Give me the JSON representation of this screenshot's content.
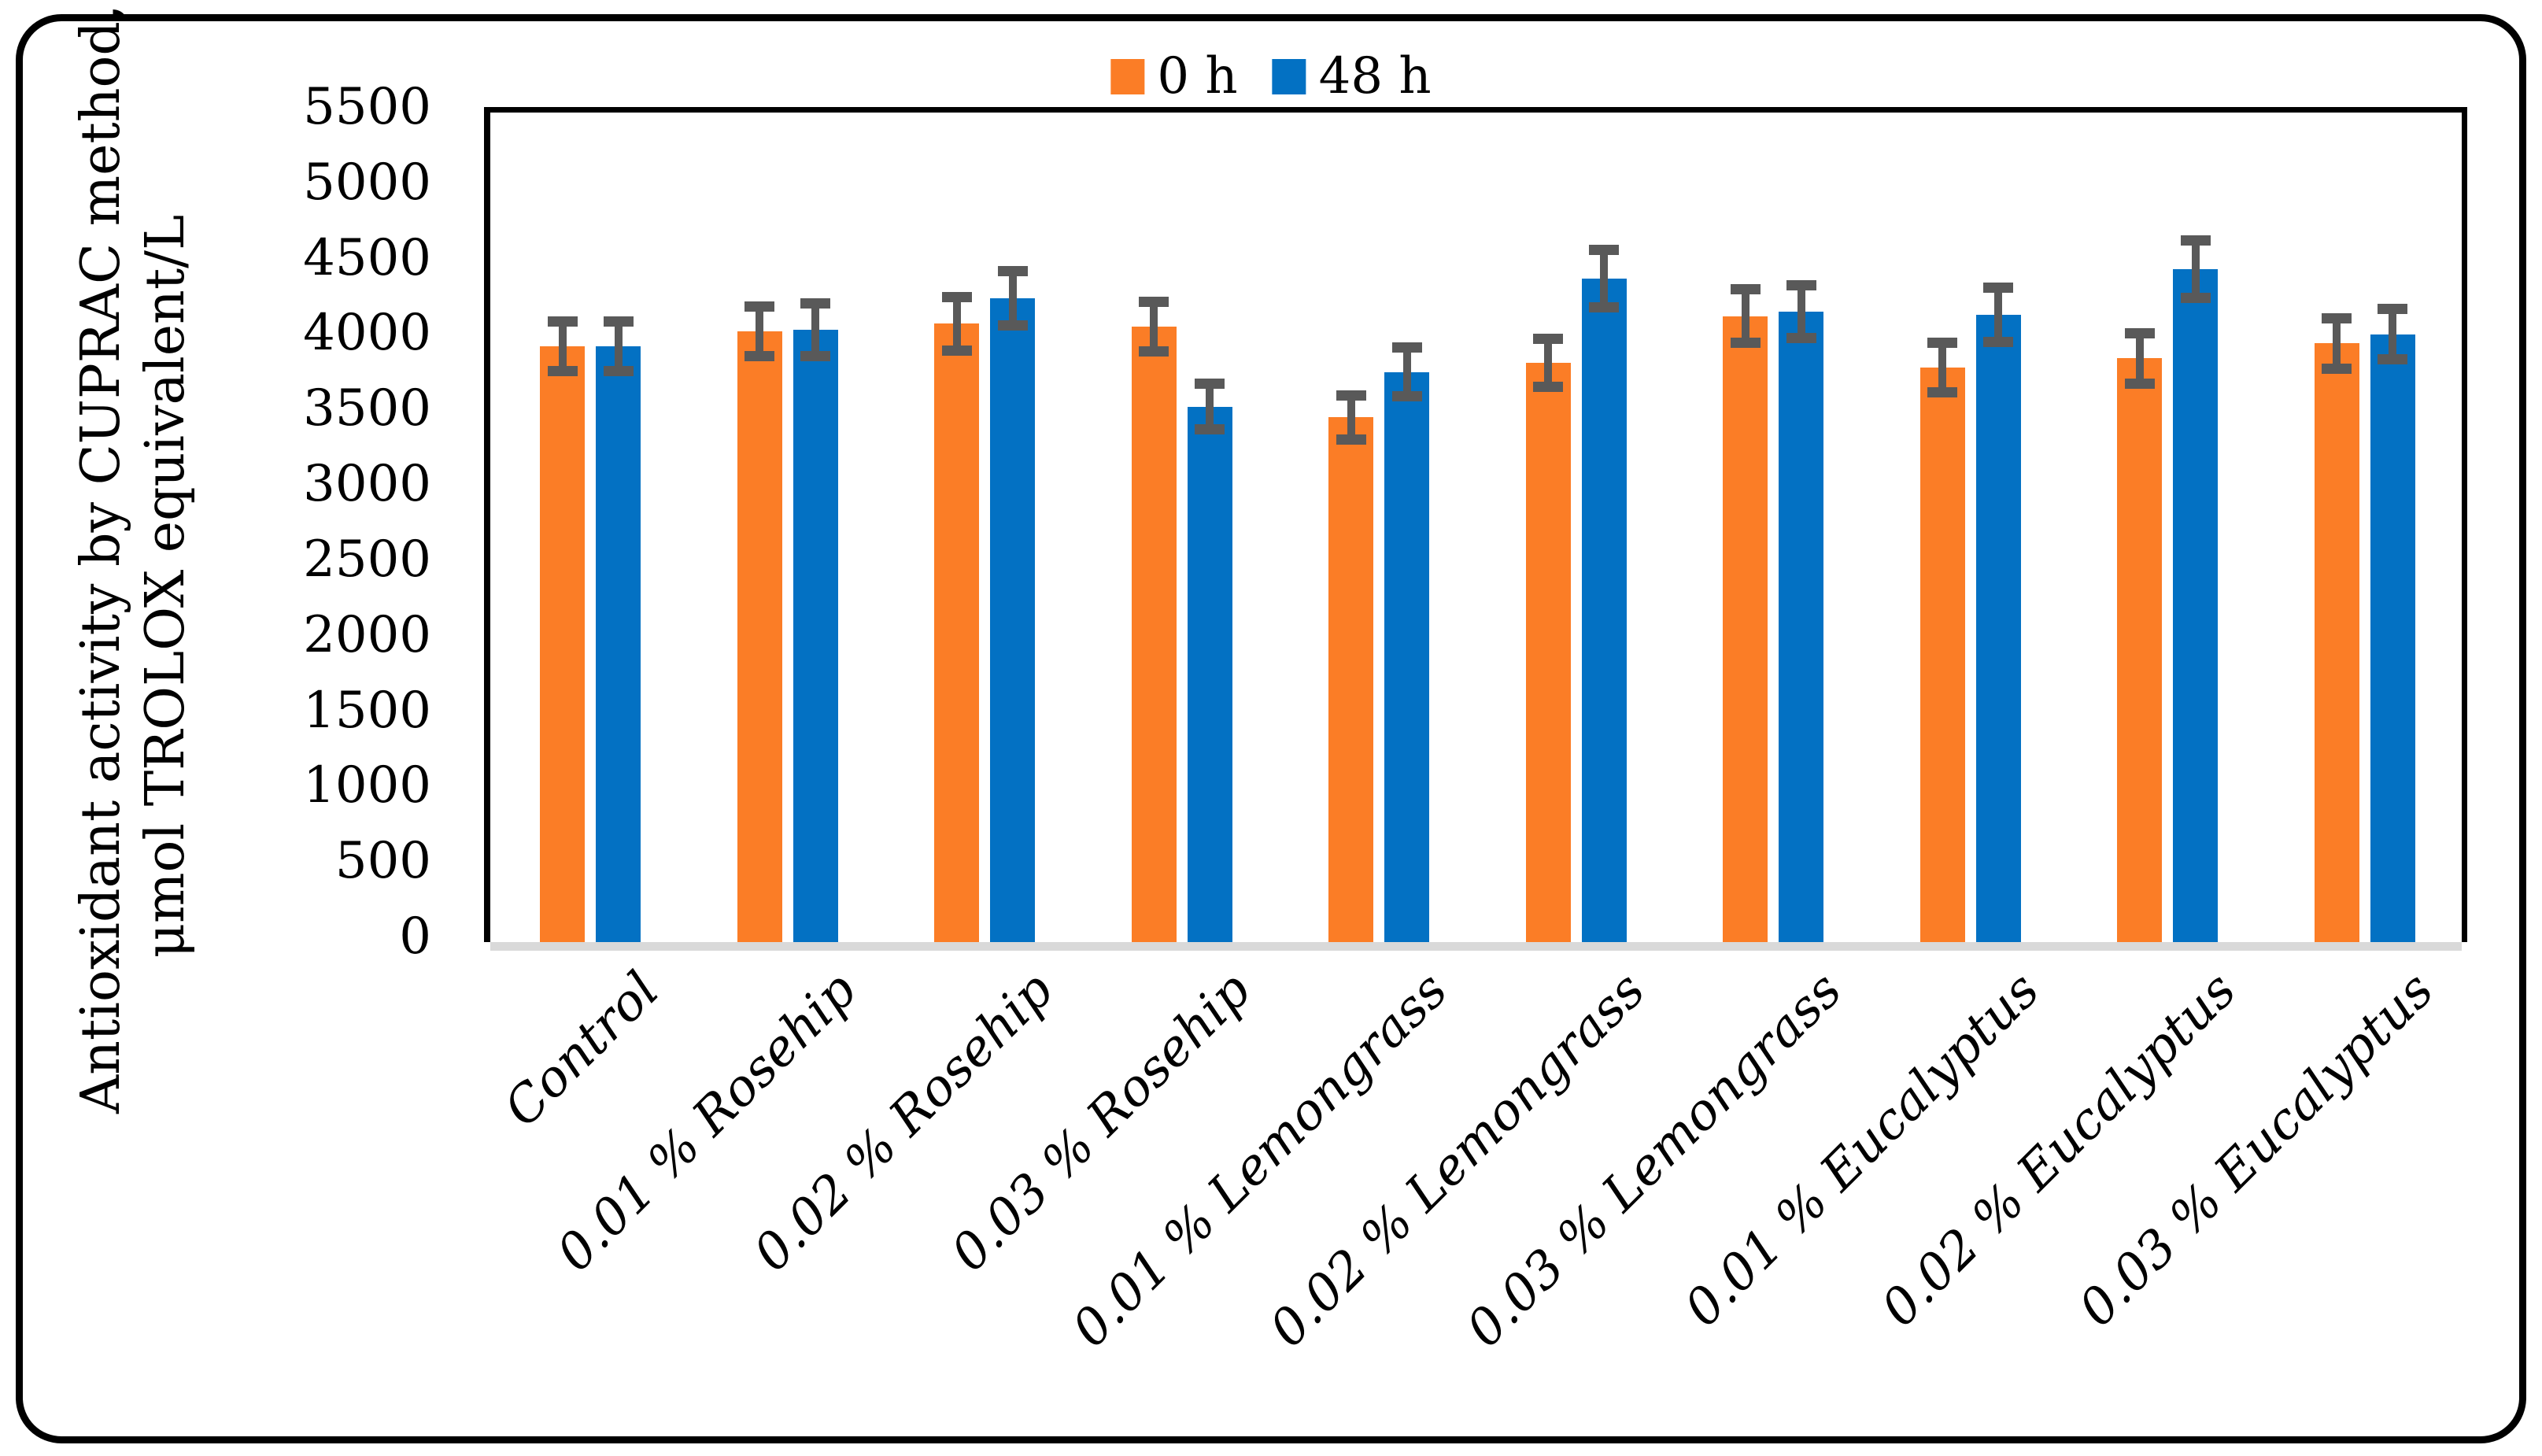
{
  "figure": {
    "ylabel_line1": "Antioxidant activity by CUPRAC method,",
    "ylabel_line2": "μmol TROLOX equivalent/L"
  },
  "chart_data": {
    "type": "bar",
    "title": "",
    "xlabel": "",
    "ylabel": "Antioxidant activity by CUPRAC method, μmol TROLOX equivalent/L",
    "ylim": [
      0,
      5500
    ],
    "ytick_step": 500,
    "yticks": [
      0,
      500,
      1000,
      1500,
      2000,
      2500,
      3000,
      3500,
      4000,
      4500,
      5000,
      5500
    ],
    "grid": false,
    "legend_position": "top-center",
    "categories": [
      "Control",
      "0.01 % Rosehip",
      "0.02 % Rosehip",
      "0.03 % Rosehip",
      "0.01 % Lemongrass",
      "0.02 % Lemongrass",
      "0.03 % Lemongrass",
      "0.01 % Eucalyptus",
      "0.02 % Eucalyptus",
      "0.03 % Eucalyptus"
    ],
    "series": [
      {
        "name": "0 h",
        "color": "#FB7D26",
        "values": [
          3950,
          4050,
          4100,
          4080,
          3480,
          3840,
          4150,
          3810,
          3870,
          3970
        ],
        "errors": [
          200,
          200,
          210,
          200,
          180,
          195,
          210,
          200,
          200,
          200
        ]
      },
      {
        "name": "48 h",
        "color": "#0371C3",
        "values": [
          3950,
          4060,
          4270,
          3550,
          3780,
          4400,
          4180,
          4160,
          4460,
          4030
        ],
        "errors": [
          200,
          210,
          215,
          185,
          195,
          225,
          210,
          215,
          225,
          200
        ]
      }
    ],
    "error_bar_color": "#595959",
    "baseline_color": "#D9D9D9"
  }
}
